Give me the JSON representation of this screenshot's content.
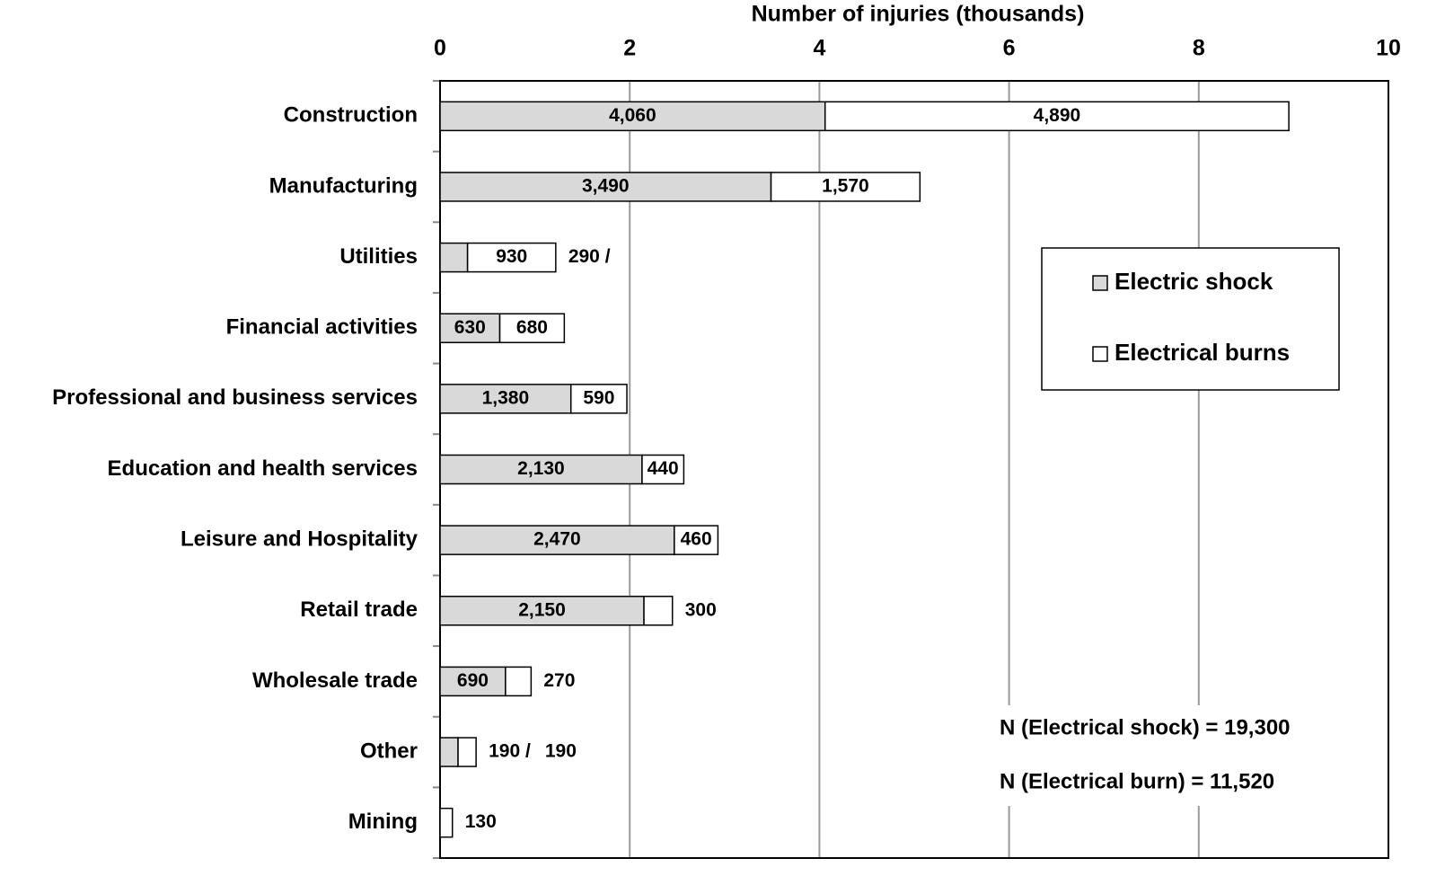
{
  "chart_data": {
    "type": "stacked-bar-horizontal",
    "xlabel": "Number of injuries (thousands)",
    "categories": [
      "Construction",
      "Manufacturing",
      "Utilities",
      "Financial activities",
      "Professional and business services",
      "Education and health services",
      "Leisure and Hospitality",
      "Retail trade",
      "Wholesale trade",
      "Other",
      "Mining"
    ],
    "series": [
      {
        "name": "Electric shock",
        "color": "#d9d9d9",
        "values": [
          4.06,
          3.49,
          0.29,
          0.63,
          1.38,
          2.13,
          2.47,
          2.15,
          0.69,
          0.19,
          0
        ],
        "value_labels": [
          "4,060",
          "3,490",
          "290 /",
          "630",
          "1,380",
          "2,130",
          "2,470",
          "2,150",
          "690",
          "190 /",
          null
        ]
      },
      {
        "name": "Electrical burns",
        "color": "#ffffff",
        "values": [
          4.89,
          1.57,
          0.93,
          0.68,
          0.59,
          0.44,
          0.46,
          0.3,
          0.27,
          0.19,
          0.13
        ],
        "value_labels": [
          "4,890",
          "1,570",
          "930",
          "680",
          "590",
          "440",
          "460",
          "300",
          "270",
          "190",
          "130"
        ]
      }
    ],
    "xlim": [
      0,
      10
    ],
    "xticks": [
      0,
      2,
      4,
      6,
      8,
      10
    ],
    "grid": true,
    "legend": "upper right",
    "annotations": [
      "N (Electrical shock) = 19,300",
      "N (Electrical burn) =  11,520"
    ]
  }
}
